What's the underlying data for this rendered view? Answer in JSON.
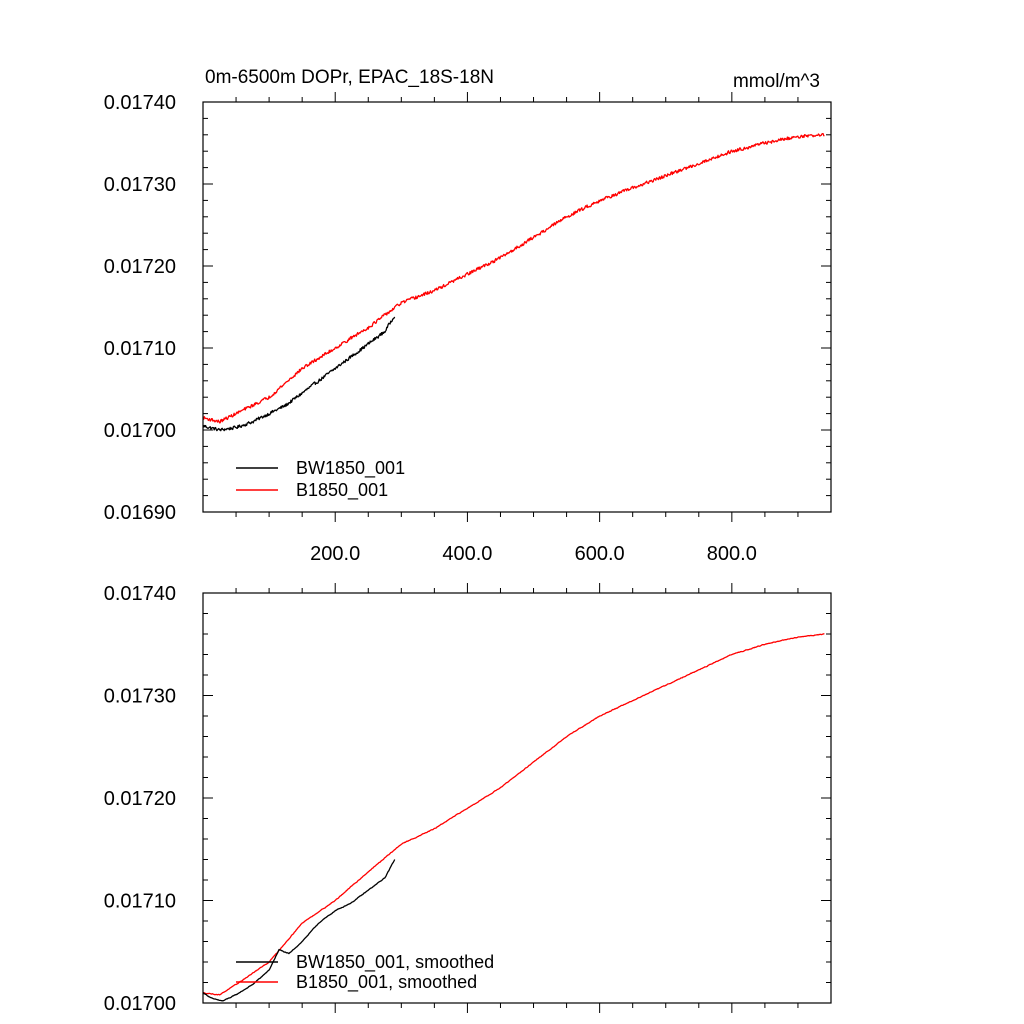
{
  "chart_data": [
    {
      "type": "line",
      "title": "0m-6500m DOPr, EPAC_18S-18N",
      "units": "mmol/m^3",
      "xlim": [
        0,
        950
      ],
      "ylim": [
        0.0169,
        0.0174
      ],
      "y_ticks": [
        "0.01690",
        "0.01700",
        "0.01710",
        "0.01720",
        "0.01730",
        "0.01740"
      ],
      "y_tick_values": [
        0.0169,
        0.017,
        0.0171,
        0.0172,
        0.0173,
        0.0174
      ],
      "x_ticks": [
        "200.0",
        "400.0",
        "600.0",
        "800.0"
      ],
      "x_tick_values": [
        200,
        400,
        600,
        800
      ],
      "legend": [
        "BW1850_001",
        "B1850_001"
      ],
      "series": [
        {
          "name": "BW1850_001",
          "color": "#000000",
          "x": [
            0,
            25,
            50,
            75,
            100,
            125,
            150,
            175,
            200,
            225,
            250,
            275,
            290
          ],
          "values": [
            0.017005,
            0.017,
            0.017003,
            0.01701,
            0.01702,
            0.01703,
            0.017045,
            0.01706,
            0.017075,
            0.01709,
            0.017105,
            0.01712,
            0.01714
          ],
          "noise": 1.8e-06
        },
        {
          "name": "B1850_001",
          "color": "#ff0000",
          "x": [
            0,
            25,
            50,
            100,
            150,
            200,
            250,
            300,
            350,
            400,
            450,
            500,
            550,
            600,
            650,
            700,
            750,
            800,
            850,
            900,
            940
          ],
          "values": [
            0.017015,
            0.01701,
            0.01702,
            0.01704,
            0.017075,
            0.0171,
            0.017125,
            0.017155,
            0.01717,
            0.01719,
            0.01721,
            0.017235,
            0.01726,
            0.01728,
            0.017295,
            0.01731,
            0.017325,
            0.01734,
            0.01735,
            0.017358,
            0.01736
          ],
          "noise": 1.8e-06
        }
      ]
    },
    {
      "type": "line",
      "title": "",
      "xlim": [
        0,
        950
      ],
      "ylim": [
        0.017,
        0.0174
      ],
      "y_ticks": [
        "0.01700",
        "0.01710",
        "0.01720",
        "0.01730",
        "0.01740"
      ],
      "y_tick_values": [
        0.017,
        0.0171,
        0.0172,
        0.0173,
        0.0174
      ],
      "x_ticks": [],
      "x_tick_values": [
        200,
        400,
        600,
        800
      ],
      "legend": [
        "BW1850_001, smoothed",
        "B1850_001, smoothed"
      ],
      "series": [
        {
          "name": "BW1850_001, smoothed",
          "color": "#000000",
          "x": [
            0,
            15,
            30,
            50,
            75,
            100,
            115,
            130,
            150,
            175,
            200,
            225,
            250,
            275,
            290
          ],
          "values": [
            0.01701,
            0.017004,
            0.017002,
            0.017008,
            0.017018,
            0.017032,
            0.017052,
            0.017048,
            0.01706,
            0.017078,
            0.01709,
            0.017098,
            0.01711,
            0.017122,
            0.01714
          ],
          "noise": 4e-07
        },
        {
          "name": "B1850_001, smoothed",
          "color": "#ff0000",
          "x": [
            0,
            25,
            50,
            100,
            150,
            200,
            250,
            300,
            350,
            400,
            450,
            500,
            550,
            600,
            650,
            700,
            750,
            800,
            850,
            900,
            940
          ],
          "values": [
            0.01701,
            0.017008,
            0.017018,
            0.01704,
            0.017078,
            0.0171,
            0.017128,
            0.017155,
            0.01717,
            0.01719,
            0.01721,
            0.017235,
            0.01726,
            0.01728,
            0.017295,
            0.01731,
            0.017325,
            0.01734,
            0.01735,
            0.017357,
            0.01736
          ],
          "noise": 4e-07
        }
      ]
    }
  ]
}
